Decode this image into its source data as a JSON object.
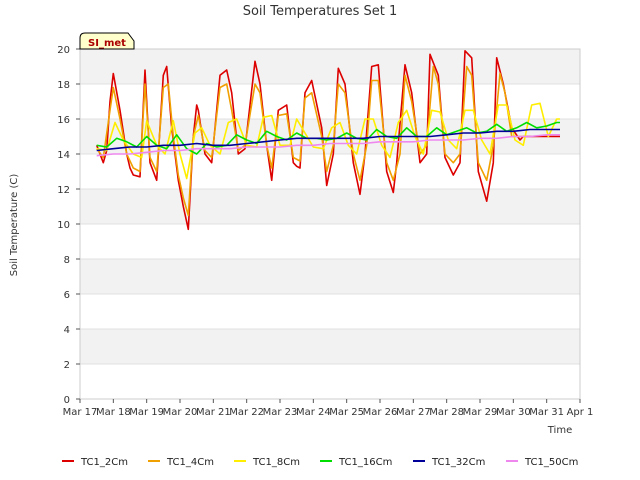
{
  "chart_data": {
    "type": "line",
    "title": "Soil Temperatures Set 1",
    "xlabel": "Time",
    "ylabel": "Soil Temperature (C)",
    "badge": "SI_met",
    "ylim": [
      0,
      20
    ],
    "yticks": [
      0,
      2,
      4,
      6,
      8,
      10,
      12,
      14,
      16,
      18,
      20
    ],
    "xlim": [
      0,
      15
    ],
    "xticks": [
      0,
      1,
      2,
      3,
      4,
      5,
      6,
      7,
      8,
      9,
      10,
      11,
      12,
      13,
      14,
      15
    ],
    "xtick_labels": [
      "Mar 17",
      "Mar 18",
      "Mar 19",
      "Mar 20",
      "Mar 21",
      "Mar 22",
      "Mar 23",
      "Mar 24",
      "Mar 25",
      "Mar 26",
      "Mar 27",
      "Mar 28",
      "Mar 29",
      "Mar 30",
      "Mar 31",
      "Apr 1"
    ],
    "x_unit": "days since Mar 17",
    "grid": "horizontal bands",
    "legend_position": "bottom",
    "series": [
      {
        "name": "TC1_2Cm",
        "color": "#dd0000",
        "x": [
          0.5,
          0.7,
          0.8,
          0.9,
          1.0,
          1.2,
          1.4,
          1.5,
          1.6,
          1.8,
          1.95,
          2.1,
          2.3,
          2.5,
          2.6,
          2.75,
          2.95,
          3.1,
          3.25,
          3.4,
          3.5,
          3.55,
          3.75,
          3.95,
          4.2,
          4.4,
          4.55,
          4.75,
          4.95,
          5.25,
          5.4,
          5.6,
          5.75,
          5.95,
          6.2,
          6.4,
          6.5,
          6.6,
          6.75,
          6.95,
          7.25,
          7.4,
          7.6,
          7.75,
          7.95,
          8.2,
          8.4,
          8.55,
          8.75,
          8.95,
          9.2,
          9.4,
          9.5,
          9.75,
          9.95,
          10.2,
          10.4,
          10.5,
          10.75,
          10.95,
          11.2,
          11.4,
          11.55,
          11.75,
          11.95,
          12.2,
          12.4,
          12.5,
          12.7,
          12.95,
          13.2,
          13.3,
          13.4,
          13.7,
          13.95,
          14.2,
          14.4
        ],
        "y": [
          14.5,
          13.5,
          14.2,
          17.0,
          18.6,
          16.5,
          14.0,
          13.2,
          12.8,
          12.7,
          18.8,
          13.5,
          12.5,
          18.5,
          19.0,
          15.5,
          12.5,
          11.0,
          9.7,
          15.0,
          16.8,
          16.5,
          14.0,
          13.5,
          18.5,
          18.8,
          17.5,
          14.0,
          14.3,
          19.3,
          18.0,
          14.5,
          12.5,
          16.5,
          16.8,
          13.5,
          13.3,
          13.2,
          17.5,
          18.2,
          15.5,
          12.2,
          14.0,
          18.9,
          18.0,
          13.5,
          11.7,
          14.0,
          19.0,
          19.1,
          13.0,
          11.8,
          13.5,
          19.1,
          17.5,
          13.5,
          14.0,
          19.7,
          18.5,
          13.8,
          12.8,
          13.5,
          19.9,
          19.5,
          13.0,
          11.3,
          13.5,
          19.5,
          18.0,
          15.5,
          14.8,
          15.0,
          15.0,
          15.0,
          15.0,
          15.0,
          15.0
        ]
      },
      {
        "name": "TC1_4Cm",
        "color": "#f0a000",
        "x": [
          0.5,
          0.7,
          0.9,
          1.0,
          1.2,
          1.4,
          1.6,
          1.8,
          1.95,
          2.1,
          2.3,
          2.5,
          2.65,
          2.8,
          2.95,
          3.1,
          3.25,
          3.4,
          3.55,
          3.75,
          3.95,
          4.2,
          4.4,
          4.55,
          4.75,
          4.95,
          5.25,
          5.4,
          5.6,
          5.75,
          5.95,
          6.2,
          6.4,
          6.6,
          6.75,
          6.95,
          7.25,
          7.4,
          7.6,
          7.75,
          7.95,
          8.2,
          8.4,
          8.6,
          8.75,
          8.95,
          9.2,
          9.4,
          9.6,
          9.75,
          9.95,
          10.2,
          10.4,
          10.6,
          10.75,
          10.95,
          11.2,
          11.4,
          11.6,
          11.75,
          11.95,
          12.2,
          12.4,
          12.6,
          12.75,
          12.95,
          13.2,
          13.4
        ],
        "y": [
          14.3,
          13.8,
          16.5,
          17.8,
          16.0,
          14.0,
          13.2,
          13.0,
          18.0,
          13.8,
          13.0,
          17.8,
          18.0,
          15.0,
          12.8,
          11.5,
          10.5,
          15.0,
          16.2,
          14.2,
          13.8,
          17.8,
          18.0,
          16.5,
          14.2,
          14.5,
          18.0,
          17.5,
          14.5,
          13.2,
          16.2,
          16.3,
          13.8,
          13.6,
          17.2,
          17.5,
          15.0,
          13.0,
          14.5,
          18.0,
          17.5,
          14.0,
          12.5,
          14.5,
          18.2,
          18.2,
          13.5,
          12.5,
          14.0,
          18.5,
          17.0,
          14.0,
          14.5,
          19.0,
          18.0,
          14.0,
          13.5,
          14.0,
          19.0,
          18.5,
          13.5,
          12.5,
          14.5,
          18.6,
          17.5,
          15.0,
          15.0,
          15.0
        ]
      },
      {
        "name": "TC1_8Cm",
        "color": "#ffee00",
        "x": [
          0.5,
          0.8,
          1.05,
          1.3,
          1.6,
          1.85,
          2.0,
          2.3,
          2.55,
          2.8,
          3.0,
          3.2,
          3.45,
          3.65,
          3.9,
          4.2,
          4.45,
          4.7,
          5.0,
          5.3,
          5.5,
          5.75,
          6.0,
          6.3,
          6.5,
          6.75,
          7.0,
          7.3,
          7.55,
          7.8,
          8.05,
          8.3,
          8.55,
          8.8,
          9.05,
          9.3,
          9.55,
          9.8,
          10.05,
          10.3,
          10.55,
          10.8,
          11.05,
          11.3,
          11.55,
          11.8,
          12.05,
          12.3,
          12.55,
          12.8,
          13.05,
          13.3,
          13.55,
          13.8,
          14.05,
          14.3,
          14.4
        ],
        "y": [
          14.3,
          14.2,
          15.8,
          14.8,
          14.0,
          13.8,
          15.9,
          14.5,
          14.0,
          15.9,
          14.0,
          12.6,
          15.2,
          15.5,
          14.5,
          14.0,
          15.8,
          16.0,
          14.5,
          14.4,
          16.1,
          16.2,
          14.5,
          14.5,
          16.0,
          15.2,
          14.4,
          14.3,
          15.5,
          15.8,
          14.5,
          14.0,
          16.0,
          16.0,
          14.5,
          13.8,
          15.8,
          16.5,
          15.0,
          14.0,
          16.5,
          16.4,
          14.8,
          14.3,
          16.5,
          16.5,
          14.8,
          14.0,
          16.8,
          16.8,
          14.8,
          14.5,
          16.8,
          16.9,
          15.0,
          16.0,
          16.0
        ]
      },
      {
        "name": "TC1_16Cm",
        "color": "#00dd00",
        "x": [
          0.5,
          0.8,
          1.1,
          1.4,
          1.7,
          2.0,
          2.3,
          2.6,
          2.9,
          3.2,
          3.5,
          3.8,
          4.1,
          4.4,
          4.7,
          5.0,
          5.3,
          5.6,
          5.9,
          6.2,
          6.5,
          6.8,
          7.1,
          7.4,
          7.7,
          8.0,
          8.3,
          8.6,
          8.9,
          9.2,
          9.5,
          9.8,
          10.1,
          10.4,
          10.7,
          11.0,
          11.3,
          11.6,
          11.9,
          12.2,
          12.5,
          12.8,
          13.1,
          13.4,
          13.7,
          14.0,
          14.3,
          14.4
        ],
        "y": [
          14.5,
          14.4,
          14.9,
          14.7,
          14.4,
          15.0,
          14.5,
          14.3,
          15.1,
          14.3,
          14.0,
          14.6,
          14.4,
          14.5,
          15.1,
          14.8,
          14.6,
          15.3,
          15.0,
          14.8,
          15.2,
          14.9,
          14.9,
          14.8,
          14.9,
          15.2,
          14.9,
          14.8,
          15.4,
          15.0,
          14.9,
          15.5,
          15.0,
          15.0,
          15.5,
          15.1,
          15.3,
          15.5,
          15.2,
          15.3,
          15.7,
          15.3,
          15.5,
          15.8,
          15.5,
          15.6,
          15.8,
          15.8
        ]
      },
      {
        "name": "TC1_32Cm",
        "color": "#000099",
        "x": [
          0.5,
          1.0,
          1.5,
          2.0,
          2.5,
          3.0,
          3.5,
          4.0,
          4.5,
          5.0,
          5.5,
          6.0,
          6.5,
          7.0,
          7.5,
          8.0,
          8.5,
          9.0,
          9.5,
          10.0,
          10.5,
          11.0,
          11.5,
          12.0,
          12.5,
          13.0,
          13.5,
          14.0,
          14.4
        ],
        "y": [
          14.2,
          14.3,
          14.4,
          14.4,
          14.5,
          14.5,
          14.6,
          14.5,
          14.5,
          14.6,
          14.7,
          14.8,
          14.9,
          14.9,
          14.9,
          14.9,
          14.9,
          15.0,
          15.0,
          15.0,
          15.0,
          15.1,
          15.2,
          15.2,
          15.3,
          15.3,
          15.4,
          15.4,
          15.4
        ]
      },
      {
        "name": "TC1_50Cm",
        "color": "#ee88ee",
        "x": [
          0.5,
          1.0,
          1.5,
          2.0,
          2.5,
          3.0,
          3.5,
          4.0,
          4.5,
          5.0,
          5.5,
          6.0,
          6.5,
          7.0,
          7.5,
          8.0,
          8.5,
          9.0,
          9.5,
          10.0,
          10.5,
          11.0,
          11.5,
          12.0,
          12.5,
          13.0,
          13.5,
          14.0,
          14.4
        ],
        "y": [
          13.9,
          14.0,
          14.0,
          14.1,
          14.2,
          14.2,
          14.3,
          14.3,
          14.3,
          14.4,
          14.4,
          14.4,
          14.5,
          14.5,
          14.6,
          14.6,
          14.6,
          14.7,
          14.7,
          14.7,
          14.8,
          14.8,
          14.8,
          14.9,
          14.9,
          15.0,
          15.0,
          15.1,
          15.1
        ]
      }
    ]
  }
}
